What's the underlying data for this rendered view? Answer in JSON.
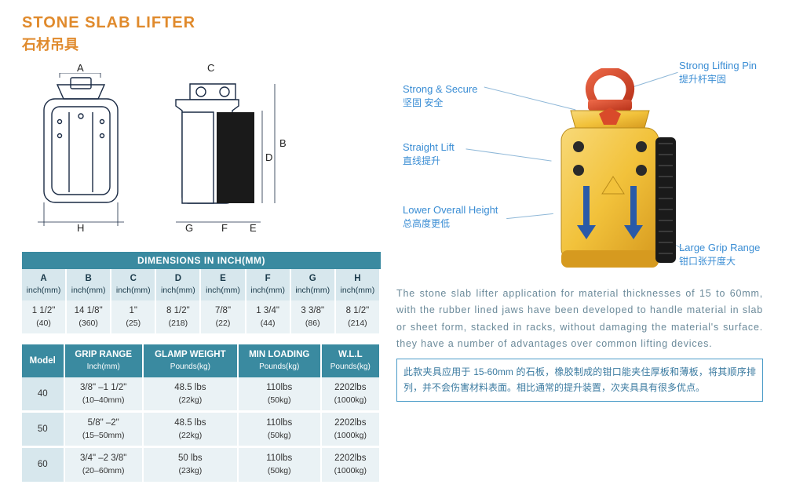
{
  "title": "STONE SLAB LIFTER",
  "subtitle": "石材吊具",
  "diagram_labels": {
    "A": "A",
    "B": "B",
    "C": "C",
    "D": "D",
    "E": "E",
    "F": "F",
    "G": "G",
    "H": "H"
  },
  "dim_table": {
    "caption": "DIMENSIONS IN INCH(MM)",
    "headers": [
      {
        "l": "A",
        "u": "inch(mm)"
      },
      {
        "l": "B",
        "u": "inch(mm)"
      },
      {
        "l": "C",
        "u": "inch(mm)"
      },
      {
        "l": "D",
        "u": "inch(mm)"
      },
      {
        "l": "E",
        "u": "inch(mm)"
      },
      {
        "l": "F",
        "u": "inch(mm)"
      },
      {
        "l": "G",
        "u": "inch(mm)"
      },
      {
        "l": "H",
        "u": "inch(mm)"
      }
    ],
    "row": [
      {
        "v": "1 1/2\"",
        "s": "(40)"
      },
      {
        "v": "14 1/8\"",
        "s": "(360)"
      },
      {
        "v": "1\"",
        "s": "(25)"
      },
      {
        "v": "8 1/2\"",
        "s": "(218)"
      },
      {
        "v": "7/8\"",
        "s": "(22)"
      },
      {
        "v": "1 3/4\"",
        "s": "(44)"
      },
      {
        "v": "3 3/8\"",
        "s": "(86)"
      },
      {
        "v": "8 1/2\"",
        "s": "(214)"
      }
    ]
  },
  "spec_table": {
    "headers": [
      {
        "l": "Model",
        "u": ""
      },
      {
        "l": "GRIP RANGE",
        "u": "Inch(mm)"
      },
      {
        "l": "GLAMP WEIGHT",
        "u": "Pounds(kg)"
      },
      {
        "l": "MIN LOADING",
        "u": "Pounds(kg)"
      },
      {
        "l": "W.L.L",
        "u": "Pounds(kg)"
      }
    ],
    "rows": [
      [
        {
          "v": "40"
        },
        {
          "v": "3/8\" –1  1/2\"",
          "s": "(10–40mm)"
        },
        {
          "v": "48.5 lbs",
          "s": "(22kg)"
        },
        {
          "v": "110lbs",
          "s": "(50kg)"
        },
        {
          "v": "2202lbs",
          "s": "(1000kg)"
        }
      ],
      [
        {
          "v": "50"
        },
        {
          "v": "5/8\" –2\"",
          "s": "(15–50mm)"
        },
        {
          "v": "48.5 lbs",
          "s": "(22kg)"
        },
        {
          "v": "110lbs",
          "s": "(50kg)"
        },
        {
          "v": "2202lbs",
          "s": "(1000kg)"
        }
      ],
      [
        {
          "v": "60"
        },
        {
          "v": "3/4\" –2 3/8\"",
          "s": "(20–60mm)"
        },
        {
          "v": "50 lbs",
          "s": "(23kg)"
        },
        {
          "v": "110lbs",
          "s": "(50kg)"
        },
        {
          "v": "2202lbs",
          "s": "(1000kg)"
        }
      ]
    ]
  },
  "callouts": {
    "c1": {
      "en": "Strong & Secure",
      "cn": "坚固 安全"
    },
    "c2": {
      "en": "Straight Lift",
      "cn": "直线提升"
    },
    "c3": {
      "en": "Lower Overall Height",
      "cn": "总高度更低"
    },
    "c4": {
      "en": "Strong Lifting Pin",
      "cn": "提升杆牢固"
    },
    "c5": {
      "en": "Large Grip Range",
      "cn": "钳口张开度大"
    }
  },
  "description_en": "The stone slab lifter application for material thicknesses of 15 to 60mm, with the rubber lined jaws have been developed to handle material in slab or sheet form, stacked in racks, without damaging the material's surface. they have a number of advantages over common lifting devices.",
  "description_cn": "此款夹具应用于 15-60mm 的石板，橡胶制成的钳口能夹住厚板和薄板，将其顺序排列，并不会伤害材料表面。相比通常的提升装置，次夹具具有很多优点。",
  "colors": {
    "accent": "#e08a2c",
    "teal": "#3a8aa0",
    "teal_lt": "#d7e7ed",
    "blue": "#3a8dd4",
    "prod_yellow": "#f2c23b",
    "prod_shackle": "#d94a2a",
    "prod_rubber": "#1a1a1a"
  }
}
